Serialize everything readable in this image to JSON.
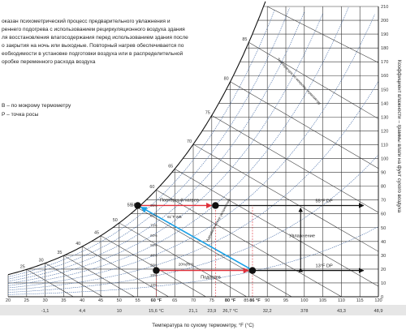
{
  "description": {
    "lines": [
      "оказан психометрический процесс предварительного увлажнения и",
      "реннего подогрева с использованием рециркуляционного воздуха здания",
      "ля восстановления влагосодержания перед использованием здания после",
      "о закрытия на ночь или выходные. Повторный нагрев обеспечивается по",
      "еобходимости в установке подготовки воздуха или в распределительной",
      "оробке переменного расхода воздуха"
    ]
  },
  "legend": {
    "wet_bulb": "B – по мокрому термометру",
    "dew_point": "P – точка росы"
  },
  "chart_data": {
    "type": "diagram",
    "x_axis": {
      "title": "Температура по сухому термометру, °F (°С)",
      "range_f": [
        20,
        120
      ],
      "ticks_f": [
        "20",
        "25",
        "30",
        "35",
        "40",
        "45",
        "50",
        "55",
        "60 °F",
        "65",
        "70",
        "75",
        "80 °F",
        "85",
        "86 °F",
        "90",
        "95",
        "100",
        "105",
        "110",
        "115",
        "120"
      ],
      "ticks_c": [
        "-1,1",
        "4,4",
        "10",
        "15,6 °С",
        "21,1",
        "23,9",
        "26,7 °С",
        "32,2",
        "378",
        "43,3",
        "48,9"
      ]
    },
    "y_axis": {
      "title": "Коэффициент влажности – граммы влаги на фунт сухого воздуха",
      "range": [
        0,
        210
      ],
      "ticks": [
        "0",
        "10",
        "20",
        "30",
        "40",
        "50",
        "60",
        "70",
        "80",
        "90",
        "100",
        "110",
        "120",
        "130",
        "140",
        "150",
        "160",
        "170",
        "180",
        "190",
        "200",
        "210"
      ]
    },
    "wet_bulb_labels": [
      "25",
      "30",
      "35",
      "40",
      "45",
      "50",
      "55",
      "60",
      "65",
      "70",
      "75",
      "80",
      "85"
    ],
    "rh_labels": [
      "10%",
      "20%",
      "30%",
      "40%",
      "50%",
      "60%",
      "70%",
      "80%",
      "90%"
    ],
    "enthalpy_label": "Температура по мокрому термометру",
    "points": [
      {
        "name": "cold-dry",
        "db_f": 60,
        "w": 19
      },
      {
        "name": "after-preheat",
        "db_f": 86,
        "w": 19
      },
      {
        "name": "saturated",
        "db_f": 55,
        "w": 66
      },
      {
        "name": "after-reheat",
        "db_f": 76,
        "w": 66
      }
    ],
    "process_labels": {
      "reheat": "Повторный нагрев",
      "preheat": "Подогрев",
      "adiabatic": "Адиабатическое увлажнение",
      "humidification": "Увлажнение",
      "rh_mid": "20%(RH)",
      "wb_mid": "61°F WB",
      "dp_high": "55°F DP",
      "dp_low": "13°F DP",
      "sat_label": "55"
    }
  }
}
